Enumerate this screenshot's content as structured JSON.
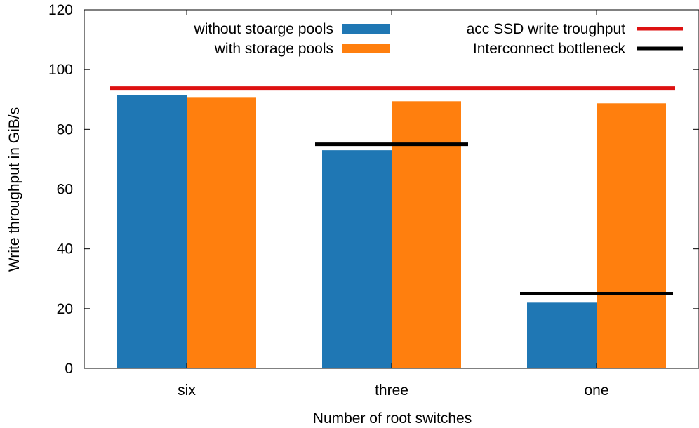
{
  "chart_data": {
    "type": "bar",
    "title": "",
    "xlabel": "Number of root switches",
    "ylabel": "Write throughput in GiB/s",
    "categories": [
      "six",
      "three",
      "one"
    ],
    "ylim": [
      0,
      120
    ],
    "yticks": [
      0,
      20,
      40,
      60,
      80,
      100,
      120
    ],
    "grid": false,
    "legend_position": "top",
    "series": [
      {
        "name": "without stoarge pools",
        "color": "#1f77b4",
        "values": [
          91.5,
          73,
          22
        ]
      },
      {
        "name": "with storage pools",
        "color": "#ff7f0e",
        "values": [
          90.8,
          89.4,
          88.7
        ]
      }
    ],
    "reference_lines": [
      {
        "name": "acc SSD write troughput",
        "color": "#dd1111",
        "type": "global",
        "value": 93.8
      },
      {
        "name": "Interconnect bottleneck",
        "color": "#000000",
        "type": "per-category",
        "values": [
          null,
          75,
          25
        ]
      }
    ]
  }
}
